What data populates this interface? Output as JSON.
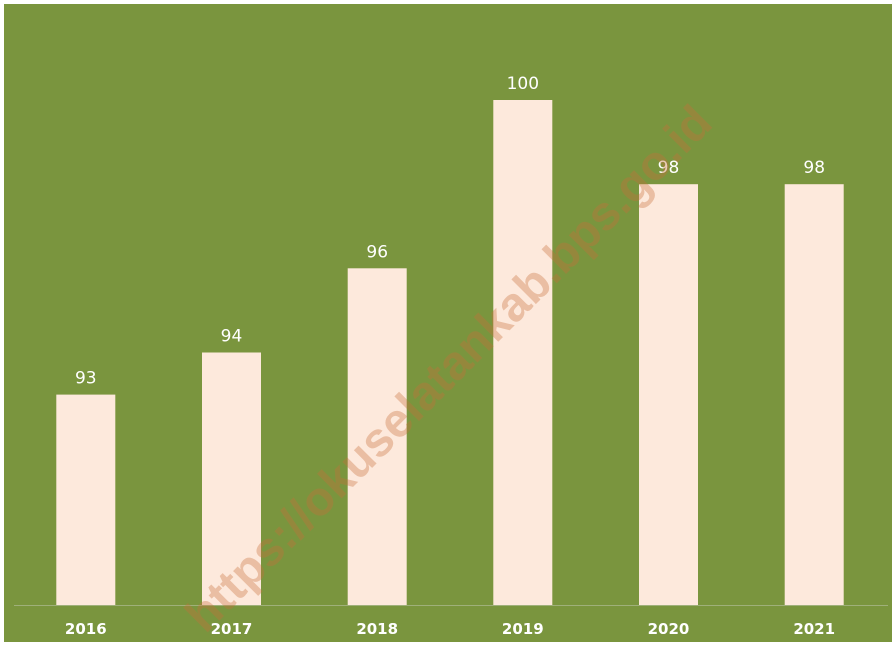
{
  "chart_data": {
    "type": "bar",
    "categories": [
      "2016",
      "2017",
      "2018",
      "2019",
      "2020",
      "2021"
    ],
    "values": [
      93,
      94,
      96,
      100,
      98,
      98
    ],
    "data_labels": [
      "93",
      "94",
      "96",
      "100",
      "98",
      "98"
    ],
    "title": "",
    "xlabel": "",
    "ylabel": "",
    "ylim": [
      88,
      100
    ],
    "grid": false,
    "legend": "none"
  },
  "watermark": {
    "text": "https://okuselatankab.bps.go.id"
  },
  "colors": {
    "background": "#7a953e",
    "bar": "#fde9dc",
    "label": "#ffffff",
    "axis": "#9fb07a",
    "watermark": "#c8703a"
  }
}
